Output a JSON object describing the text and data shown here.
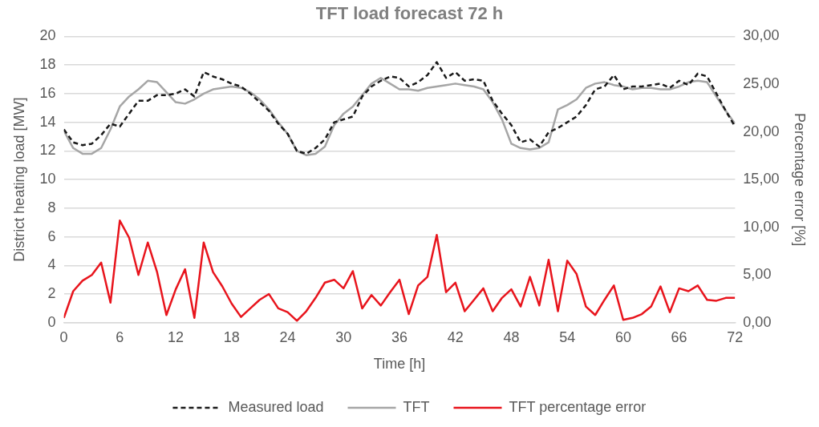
{
  "chart_data": {
    "type": "line",
    "title": "TFT load forecast 72 h",
    "xlabel": "Time [h]",
    "ylabel": "District heating load [MW]",
    "y2label": "Percentage error [%]",
    "x": [
      0,
      1,
      2,
      3,
      4,
      5,
      6,
      7,
      8,
      9,
      10,
      11,
      12,
      13,
      14,
      15,
      16,
      17,
      18,
      19,
      20,
      21,
      22,
      23,
      24,
      25,
      26,
      27,
      28,
      29,
      30,
      31,
      32,
      33,
      34,
      35,
      36,
      37,
      38,
      39,
      40,
      41,
      42,
      43,
      44,
      45,
      46,
      47,
      48,
      49,
      50,
      51,
      52,
      53,
      54,
      55,
      56,
      57,
      58,
      59,
      60,
      61,
      62,
      63,
      64,
      65,
      66,
      67,
      68,
      69,
      70,
      71,
      72
    ],
    "xlim": [
      0,
      72
    ],
    "xticks": [
      0,
      6,
      12,
      18,
      24,
      30,
      36,
      42,
      48,
      54,
      60,
      66,
      72
    ],
    "ylim": [
      0,
      20
    ],
    "yticks": [
      0,
      2,
      4,
      6,
      8,
      10,
      12,
      14,
      16,
      18,
      20
    ],
    "y2lim": [
      0,
      30
    ],
    "y2ticks": [
      {
        "value": 0,
        "label": "0,00"
      },
      {
        "value": 5,
        "label": "5,00"
      },
      {
        "value": 10,
        "label": "10,00"
      },
      {
        "value": 15,
        "label": "15,00"
      },
      {
        "value": 20,
        "label": "20,00"
      },
      {
        "value": 25,
        "label": "25,00"
      },
      {
        "value": 30,
        "label": "30,00"
      }
    ],
    "grid": "y",
    "legend": "bottom",
    "marker": "none",
    "series": [
      {
        "name": "Measured load",
        "type": "line",
        "line_style": "dashed",
        "color": "#1a1a1a",
        "values": [
          13.5,
          12.6,
          12.4,
          12.5,
          13.1,
          13.9,
          13.7,
          14.6,
          15.5,
          15.5,
          15.9,
          15.9,
          16.0,
          16.3,
          15.8,
          17.5,
          17.2,
          17.0,
          16.7,
          16.5,
          16.0,
          15.4,
          14.8,
          13.9,
          13.2,
          12.0,
          11.8,
          12.2,
          12.8,
          14.0,
          14.2,
          14.4,
          15.8,
          16.5,
          16.9,
          17.2,
          17.1,
          16.5,
          16.8,
          17.3,
          18.2,
          17.1,
          17.5,
          16.9,
          17.0,
          16.9,
          15.5,
          14.6,
          13.8,
          12.6,
          12.8,
          12.3,
          13.3,
          13.6,
          14.0,
          14.4,
          15.2,
          16.3,
          16.5,
          17.3,
          16.3,
          16.5,
          16.5,
          16.6,
          16.7,
          16.4,
          16.9,
          16.6,
          17.4,
          17.2,
          16.0,
          14.8,
          13.7
        ]
      },
      {
        "name": "TFT",
        "type": "line",
        "line_style": "solid",
        "color": "#a6a6a6",
        "values": [
          13.4,
          12.2,
          11.8,
          11.8,
          12.2,
          13.5,
          15.1,
          15.8,
          16.3,
          16.9,
          16.8,
          16.1,
          15.4,
          15.3,
          15.6,
          16.0,
          16.3,
          16.4,
          16.5,
          16.4,
          16.1,
          15.6,
          14.9,
          14.0,
          13.2,
          12.0,
          11.7,
          11.8,
          12.3,
          13.8,
          14.6,
          15.1,
          15.9,
          16.7,
          17.1,
          16.7,
          16.3,
          16.3,
          16.2,
          16.4,
          16.5,
          16.6,
          16.7,
          16.6,
          16.5,
          16.3,
          15.4,
          14.2,
          12.5,
          12.2,
          12.1,
          12.2,
          12.6,
          14.9,
          15.2,
          15.6,
          16.4,
          16.7,
          16.8,
          16.6,
          16.5,
          16.3,
          16.4,
          16.4,
          16.3,
          16.3,
          16.5,
          16.8,
          16.9,
          16.8,
          15.8,
          14.8,
          13.9
        ]
      },
      {
        "name": "TFT percentage error",
        "type": "line",
        "line_style": "solid",
        "axis": "y2",
        "color": "#e8141c",
        "values": [
          0.5,
          3.3,
          4.4,
          5.0,
          6.3,
          2.1,
          10.7,
          8.9,
          5.0,
          8.4,
          5.3,
          0.8,
          3.5,
          5.6,
          0.5,
          8.4,
          5.3,
          3.8,
          2.0,
          0.6,
          1.5,
          2.4,
          3.0,
          1.5,
          1.1,
          0.2,
          1.2,
          2.6,
          4.2,
          4.5,
          3.6,
          5.4,
          1.5,
          2.9,
          1.8,
          3.2,
          4.5,
          0.9,
          3.9,
          4.8,
          9.2,
          3.2,
          4.2,
          1.2,
          2.4,
          3.6,
          1.2,
          2.6,
          3.5,
          1.7,
          4.8,
          1.8,
          6.6,
          1.2,
          6.5,
          5.1,
          1.7,
          0.8,
          2.4,
          3.9,
          0.3,
          0.5,
          0.9,
          1.7,
          3.8,
          1.1,
          3.6,
          3.3,
          3.9,
          2.4,
          2.3,
          2.6,
          2.6
        ]
      }
    ]
  }
}
